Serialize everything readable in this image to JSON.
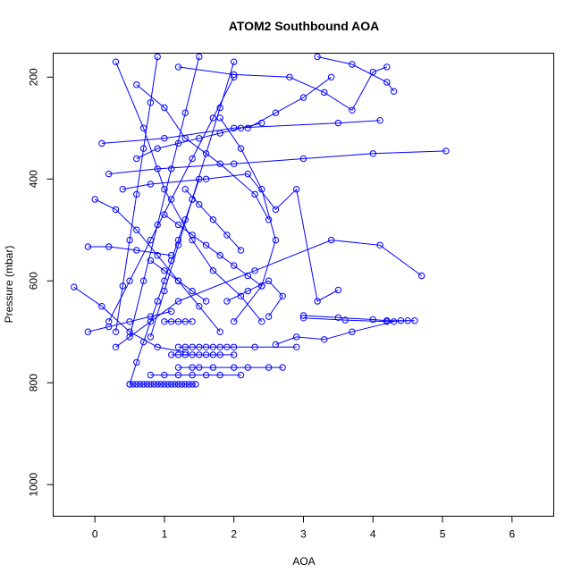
{
  "chart_data": {
    "type": "scatter",
    "title": "ATOM2 Southbound AOA",
    "xlabel": "AOA",
    "ylabel": "Pressure (mbar)",
    "xlim": [
      -0.6,
      6.6
    ],
    "ylim": [
      1062,
      153
    ],
    "y_reversed": true,
    "x_ticks": [
      0,
      1,
      2,
      3,
      4,
      5,
      6
    ],
    "y_ticks": [
      200,
      400,
      600,
      800,
      1000
    ],
    "grid": false,
    "legend": "none",
    "color": "#0000ff",
    "series": [
      {
        "x": [
          0.5,
          0.6,
          0.7,
          0.8,
          0.9,
          1.0,
          1.1,
          1.2,
          1.3,
          1.4,
          1.5
        ],
        "y": [
          803,
          760,
          720,
          680,
          640,
          600,
          560,
          520,
          480,
          440,
          400
        ]
      },
      {
        "x": [
          0.5,
          0.55,
          0.6,
          0.65,
          0.7,
          0.75,
          0.8,
          0.85,
          0.9,
          0.95,
          1.0,
          1.05,
          1.1,
          1.15,
          1.2,
          1.25,
          1.3,
          1.35,
          1.4,
          1.45
        ],
        "y": [
          803,
          803,
          803,
          803,
          803,
          803,
          803,
          803,
          803,
          803,
          803,
          803,
          803,
          803,
          803,
          803,
          803,
          803,
          803,
          803
        ]
      },
      {
        "x": [
          1.2,
          1.3,
          1.4,
          1.5,
          1.6,
          1.7,
          1.8,
          1.9,
          2.0,
          2.3,
          2.9
        ],
        "y": [
          730,
          730,
          730,
          730,
          730,
          730,
          730,
          730,
          730,
          730,
          730
        ]
      },
      {
        "x": [
          1.1,
          1.2,
          1.3,
          1.4,
          1.5,
          1.6,
          1.7,
          1.8,
          2.0
        ],
        "y": [
          745,
          745,
          745,
          745,
          745,
          745,
          745,
          745,
          745
        ]
      },
      {
        "x": [
          1.0,
          1.1,
          1.2,
          1.3,
          1.4
        ],
        "y": [
          680,
          680,
          680,
          680,
          680
        ]
      },
      {
        "x": [
          1.2,
          1.4,
          1.5,
          1.7,
          2.0,
          2.2,
          2.5,
          2.7
        ],
        "y": [
          770,
          770,
          770,
          770,
          770,
          770,
          770,
          770
        ]
      },
      {
        "x": [
          0.8,
          1.0,
          1.2,
          1.4,
          1.6,
          1.8,
          2.1
        ],
        "y": [
          785,
          785,
          785,
          785,
          785,
          785,
          785
        ]
      },
      {
        "x": [
          3.0,
          3.5,
          4.0,
          4.2,
          4.4,
          4.6
        ],
        "y": [
          668,
          672,
          676,
          678,
          678,
          678
        ]
      },
      {
        "x": [
          3.0,
          3.6,
          4.2,
          4.5
        ],
        "y": [
          673,
          677,
          680,
          678
        ]
      },
      {
        "x": [
          2.6,
          2.9,
          3.3,
          3.7,
          4.3
        ],
        "y": [
          725,
          710,
          715,
          700,
          680
        ]
      },
      {
        "x": [
          -0.3,
          0.1,
          0.5,
          0.9,
          1.3
        ],
        "y": [
          612,
          650,
          700,
          730,
          740
        ]
      },
      {
        "x": [
          -0.1,
          0.2,
          0.6,
          1.1
        ],
        "y": [
          533,
          533,
          540,
          550
        ]
      },
      {
        "x": [
          0.3,
          1.2,
          2.3,
          3.4,
          4.1,
          4.7
        ],
        "y": [
          730,
          640,
          580,
          520,
          530,
          590
        ]
      },
      {
        "x": [
          0.4,
          0.8,
          1.6,
          2.2,
          2.6,
          2.9,
          3.2,
          3.5
        ],
        "y": [
          420,
          410,
          400,
          390,
          460,
          420,
          640,
          618
        ]
      },
      {
        "x": [
          0.2,
          0.9,
          2.0,
          3.0,
          4.0,
          5.05
        ],
        "y": [
          390,
          380,
          370,
          360,
          350,
          345
        ]
      },
      {
        "x": [
          0.1,
          1.0,
          2.0,
          3.5,
          4.1
        ],
        "y": [
          330,
          320,
          300,
          290,
          285
        ]
      },
      {
        "x": [
          1.2,
          2.0,
          2.8,
          3.3,
          3.7,
          4.0,
          4.2
        ],
        "y": [
          180,
          195,
          200,
          230,
          265,
          190,
          180
        ]
      },
      {
        "x": [
          3.2,
          3.7,
          4.2,
          4.3
        ],
        "y": [
          160,
          175,
          210,
          228
        ]
      },
      {
        "x": [
          2.2,
          2.6,
          3.0,
          3.4
        ],
        "y": [
          300,
          270,
          240,
          200
        ]
      },
      {
        "x": [
          0.6,
          1.0,
          1.3,
          1.8,
          2.3,
          2.5
        ],
        "y": [
          215,
          260,
          320,
          370,
          430,
          480
        ]
      },
      {
        "x": [
          0.3,
          0.7,
          1.0,
          1.4,
          1.7,
          2.1,
          2.4
        ],
        "y": [
          170,
          300,
          420,
          520,
          580,
          630,
          680
        ]
      },
      {
        "x": [
          0.9,
          0.8,
          0.7,
          0.6,
          0.5,
          0.4,
          0.3
        ],
        "y": [
          160,
          250,
          340,
          430,
          520,
          610,
          700
        ]
      },
      {
        "x": [
          0.2,
          0.5,
          0.8,
          1.1,
          1.4,
          1.7,
          2.0
        ],
        "y": [
          680,
          600,
          520,
          440,
          360,
          280,
          200
        ]
      },
      {
        "x": [
          1.5,
          1.3,
          1.1,
          0.9,
          0.7,
          0.5
        ],
        "y": [
          160,
          270,
          380,
          490,
          600,
          710
        ]
      },
      {
        "x": [
          2.0,
          1.8,
          1.6,
          1.4,
          1.2,
          1.0,
          0.8
        ],
        "y": [
          170,
          260,
          350,
          440,
          530,
          620,
          710
        ]
      },
      {
        "x": [
          1.8,
          2.1,
          2.4,
          2.6,
          2.4,
          2.0
        ],
        "y": [
          280,
          340,
          420,
          520,
          610,
          680
        ]
      },
      {
        "x": [
          0.0,
          0.3,
          0.6,
          0.9,
          1.2,
          1.5,
          1.8
        ],
        "y": [
          440,
          460,
          500,
          550,
          600,
          650,
          700
        ]
      },
      {
        "x": [
          1.0,
          1.2,
          1.4,
          1.6,
          1.8,
          2.0,
          2.2,
          2.4
        ],
        "y": [
          470,
          490,
          510,
          530,
          550,
          570,
          590,
          610
        ]
      },
      {
        "x": [
          -0.1,
          0.2,
          0.5,
          0.8,
          1.1
        ],
        "y": [
          700,
          690,
          680,
          670,
          660
        ]
      },
      {
        "x": [
          1.9,
          2.2,
          2.5,
          2.7,
          2.5
        ],
        "y": [
          640,
          620,
          600,
          630,
          670
        ]
      },
      {
        "x": [
          0.6,
          0.9,
          1.2,
          1.5,
          1.8,
          2.1,
          2.4
        ],
        "y": [
          360,
          340,
          330,
          320,
          310,
          300,
          290
        ]
      },
      {
        "x": [
          1.3,
          1.5,
          1.7,
          1.9,
          2.1
        ],
        "y": [
          420,
          450,
          480,
          510,
          540
        ]
      },
      {
        "x": [
          0.8,
          1.0,
          1.2,
          1.4,
          1.6
        ],
        "y": [
          560,
          580,
          600,
          620,
          640
        ]
      }
    ]
  }
}
